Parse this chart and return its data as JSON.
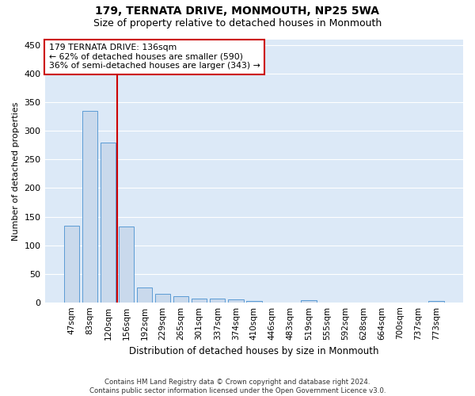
{
  "title": "179, TERNATA DRIVE, MONMOUTH, NP25 5WA",
  "subtitle": "Size of property relative to detached houses in Monmouth",
  "xlabel": "Distribution of detached houses by size in Monmouth",
  "ylabel": "Number of detached properties",
  "categories": [
    "47sqm",
    "83sqm",
    "120sqm",
    "156sqm",
    "192sqm",
    "229sqm",
    "265sqm",
    "301sqm",
    "337sqm",
    "374sqm",
    "410sqm",
    "446sqm",
    "483sqm",
    "519sqm",
    "555sqm",
    "592sqm",
    "628sqm",
    "664sqm",
    "700sqm",
    "737sqm",
    "773sqm"
  ],
  "values": [
    134,
    335,
    280,
    133,
    26,
    15,
    11,
    7,
    6,
    5,
    3,
    0,
    0,
    4,
    0,
    0,
    0,
    0,
    0,
    0,
    3
  ],
  "bar_color": "#c9d9ec",
  "bar_edge_color": "#5b9bd5",
  "vline_x": 2.5,
  "vline_color": "#cc0000",
  "annotation_text": "179 TERNATA DRIVE: 136sqm\n← 62% of detached houses are smaller (590)\n36% of semi-detached houses are larger (343) →",
  "annotation_box_color": "white",
  "annotation_box_edge": "#cc0000",
  "ylim": [
    0,
    460
  ],
  "yticks": [
    0,
    50,
    100,
    150,
    200,
    250,
    300,
    350,
    400,
    450
  ],
  "footer_line1": "Contains HM Land Registry data © Crown copyright and database right 2024.",
  "footer_line2": "Contains public sector information licensed under the Open Government Licence v3.0.",
  "bg_color": "#dce9f7",
  "fig_bg_color": "#ffffff",
  "grid_color": "#ffffff",
  "title_fontsize": 10,
  "subtitle_fontsize": 9,
  "tick_fontsize": 7.5
}
